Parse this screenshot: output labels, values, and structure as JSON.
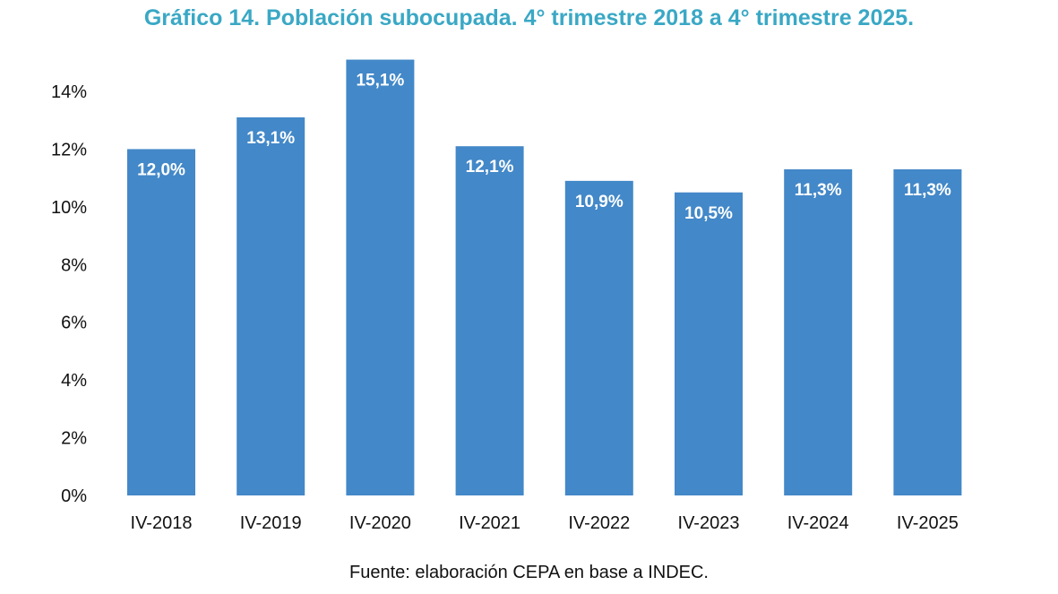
{
  "chart_data": {
    "type": "bar",
    "title": "Gráfico 14. Población subocupada. 4° trimestre 2018 a 4° trimestre 2025.",
    "categories": [
      "IV-2018",
      "IV-2019",
      "IV-2020",
      "IV-2021",
      "IV-2022",
      "IV-2023",
      "IV-2024",
      "IV-2025"
    ],
    "values": [
      12.0,
      13.1,
      15.1,
      12.1,
      10.9,
      10.5,
      11.3,
      11.3
    ],
    "data_labels": [
      "12,0%",
      "13,1%",
      "15,1%",
      "12,1%",
      "10,9%",
      "10,5%",
      "11,3%",
      "11,3%"
    ],
    "yticks": [
      0,
      2,
      4,
      6,
      8,
      10,
      12,
      14
    ],
    "ytick_labels": [
      "0%",
      "2%",
      "4%",
      "6%",
      "8%",
      "10%",
      "12%",
      "14%"
    ],
    "ylim": [
      0,
      15.1
    ],
    "xlabel": "",
    "ylabel": "",
    "grid": false,
    "legend": "none",
    "bar_color": "#4388c8",
    "title_color": "#3aa8c5"
  },
  "source": "Fuente: elaboración CEPA en base a INDEC."
}
